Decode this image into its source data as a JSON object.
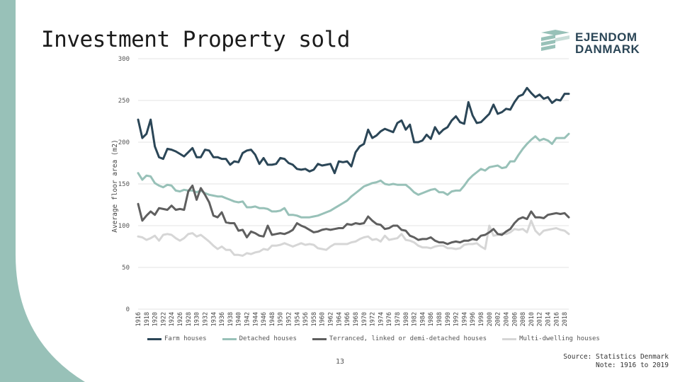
{
  "slide": {
    "title": "Investment Property sold",
    "page_number": "13",
    "source_line1": "Source: Statistics Denmark",
    "source_line2": "Note: 1916 to 2019"
  },
  "logo": {
    "line1": "EJENDOM",
    "line2": "DANMARK",
    "color": "#2b4657"
  },
  "colors": {
    "accent": "#98c1b8",
    "grid": "#e3e3e3"
  },
  "chart_data": {
    "type": "line",
    "ylabel": "Average floor area (m2)",
    "xlabel": "",
    "ylim": [
      0,
      300
    ],
    "yticks": [
      0,
      50,
      100,
      150,
      200,
      250,
      300
    ],
    "x": [
      1916,
      1917,
      1918,
      1919,
      1920,
      1921,
      1922,
      1923,
      1924,
      1925,
      1926,
      1927,
      1928,
      1929,
      1930,
      1931,
      1932,
      1933,
      1934,
      1935,
      1936,
      1937,
      1938,
      1939,
      1940,
      1941,
      1942,
      1943,
      1944,
      1945,
      1946,
      1947,
      1948,
      1949,
      1950,
      1951,
      1952,
      1953,
      1954,
      1955,
      1956,
      1957,
      1958,
      1959,
      1960,
      1961,
      1962,
      1963,
      1964,
      1965,
      1966,
      1967,
      1968,
      1969,
      1970,
      1971,
      1972,
      1973,
      1974,
      1975,
      1976,
      1977,
      1978,
      1979,
      1980,
      1981,
      1982,
      1983,
      1984,
      1985,
      1986,
      1987,
      1988,
      1989,
      1990,
      1991,
      1992,
      1993,
      1994,
      1995,
      1996,
      1997,
      1998,
      1999,
      2000,
      2001,
      2002,
      2003,
      2004,
      2005,
      2006,
      2007,
      2008,
      2009,
      2010,
      2011,
      2012,
      2013,
      2014,
      2015,
      2016,
      2017,
      2018,
      2019
    ],
    "xtick_labels": [
      "1916",
      "1918",
      "1920",
      "1922",
      "1924",
      "1926",
      "1928",
      "1930",
      "1932",
      "1934",
      "1936",
      "1938",
      "1940",
      "1942",
      "1944",
      "1946",
      "1948",
      "1950",
      "1952",
      "1954",
      "1956",
      "1958",
      "1960",
      "1962",
      "1964",
      "1966",
      "1968",
      "1970",
      "1972",
      "1974",
      "1976",
      "1978",
      "1980",
      "1982",
      "1984",
      "1986",
      "1988",
      "1990",
      "1992",
      "1994",
      "1996",
      "1998",
      "2000",
      "2002",
      "2004",
      "2006",
      "2008",
      "2010",
      "2012",
      "2014",
      "2016",
      "2018"
    ],
    "grid": true,
    "legend_position": "bottom",
    "series": [
      {
        "name": "Farm houses",
        "color": "#2b4657",
        "values": [
          227,
          205,
          210,
          227,
          195,
          182,
          180,
          192,
          191,
          189,
          186,
          183,
          188,
          193,
          182,
          182,
          191,
          190,
          182,
          182,
          180,
          180,
          173,
          177,
          176,
          187,
          190,
          191,
          185,
          174,
          181,
          173,
          173,
          174,
          181,
          180,
          175,
          173,
          168,
          167,
          168,
          165,
          167,
          174,
          172,
          173,
          174,
          163,
          177,
          176,
          177,
          171,
          188,
          195,
          198,
          215,
          205,
          208,
          213,
          216,
          214,
          212,
          223,
          226,
          215,
          221,
          200,
          200,
          202,
          209,
          204,
          218,
          210,
          215,
          218,
          226,
          231,
          224,
          222,
          248,
          232,
          223,
          224,
          229,
          234,
          245,
          234,
          236,
          240,
          239,
          248,
          255,
          257,
          265,
          259,
          254,
          257,
          252,
          254,
          247,
          251,
          250,
          258,
          258
        ]
      },
      {
        "name": "Detached houses",
        "color": "#98c1b8",
        "values": [
          163,
          155,
          160,
          159,
          151,
          148,
          146,
          149,
          148,
          142,
          141,
          143,
          142,
          142,
          140,
          142,
          139,
          137,
          136,
          135,
          135,
          133,
          131,
          129,
          128,
          129,
          122,
          122,
          123,
          121,
          121,
          120,
          117,
          117,
          118,
          121,
          113,
          113,
          112,
          110,
          110,
          110,
          111,
          112,
          114,
          116,
          118,
          121,
          124,
          127,
          130,
          135,
          139,
          143,
          147,
          149,
          151,
          152,
          154,
          150,
          149,
          150,
          149,
          149,
          149,
          145,
          140,
          137,
          139,
          141,
          143,
          144,
          140,
          140,
          137,
          141,
          142,
          142,
          148,
          155,
          160,
          164,
          168,
          166,
          170,
          171,
          172,
          169,
          170,
          177,
          177,
          185,
          192,
          198,
          203,
          207,
          202,
          204,
          202,
          198,
          205,
          205,
          205,
          210
        ]
      },
      {
        "name": "Terranced, linked or demi-detached houses",
        "color": "#5f5f5f",
        "values": [
          126,
          106,
          112,
          117,
          113,
          121,
          120,
          119,
          124,
          119,
          120,
          119,
          141,
          148,
          131,
          145,
          137,
          128,
          112,
          110,
          116,
          104,
          103,
          103,
          94,
          95,
          86,
          93,
          91,
          88,
          87,
          100,
          89,
          90,
          91,
          90,
          92,
          95,
          103,
          100,
          98,
          95,
          92,
          93,
          95,
          96,
          95,
          96,
          97,
          97,
          102,
          101,
          103,
          102,
          103,
          111,
          106,
          102,
          101,
          96,
          97,
          100,
          100,
          95,
          94,
          88,
          86,
          83,
          84,
          84,
          86,
          82,
          80,
          80,
          78,
          80,
          81,
          80,
          82,
          82,
          84,
          83,
          88,
          89,
          92,
          96,
          90,
          89,
          93,
          96,
          103,
          108,
          110,
          108,
          117,
          110,
          110,
          109,
          113,
          114,
          115,
          114,
          115,
          110
        ]
      },
      {
        "name": "Multi-dwelling houses",
        "color": "#d6d6d6",
        "values": [
          87,
          86,
          83,
          85,
          88,
          82,
          89,
          90,
          89,
          85,
          82,
          85,
          90,
          91,
          87,
          89,
          85,
          81,
          76,
          72,
          75,
          71,
          71,
          65,
          65,
          64,
          67,
          66,
          68,
          69,
          72,
          71,
          76,
          76,
          77,
          79,
          77,
          75,
          77,
          79,
          77,
          78,
          77,
          73,
          72,
          71,
          75,
          78,
          78,
          78,
          78,
          80,
          81,
          84,
          86,
          87,
          83,
          84,
          81,
          88,
          83,
          84,
          85,
          90,
          83,
          82,
          80,
          76,
          74,
          74,
          73,
          75,
          76,
          76,
          73,
          73,
          72,
          73,
          77,
          78,
          78,
          79,
          75,
          72,
          100,
          88,
          89,
          91,
          90,
          92,
          96,
          95,
          96,
          92,
          106,
          94,
          89,
          94,
          95,
          96,
          97,
          95,
          94,
          90
        ]
      }
    ]
  }
}
